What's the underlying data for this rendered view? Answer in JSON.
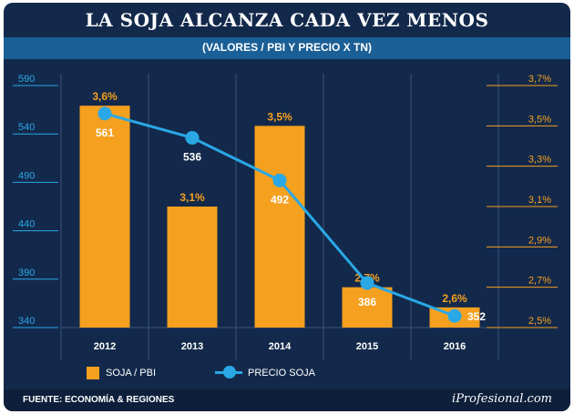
{
  "title": "LA SOJA ALCANZA CADA VEZ MENOS",
  "subtitle": "(VALORES / PBI Y PRECIO X TN)",
  "source": "FUENTE: ECONOMÍA & REGIONES",
  "brand": "iProfesional.com",
  "colors": {
    "background": "#13294b",
    "subtitle_bar": "#1a5f96",
    "bar": "#f5a01e",
    "line": "#2aa8e6",
    "left_axis": "#2aa8e6",
    "right_axis": "#f5a01e",
    "footer": "#0d1f3a"
  },
  "chart_data": {
    "type": "bar",
    "title": "LA SOJA ALCANZA CADA VEZ MENOS",
    "subtitle": "(VALORES / PBI Y PRECIO X TN)",
    "categories": [
      "2012",
      "2013",
      "2014",
      "2015",
      "2016"
    ],
    "series": [
      {
        "name": "SOJA / PBI",
        "type": "bar",
        "axis": "right",
        "values": [
          3.6,
          3.1,
          3.5,
          2.7,
          2.6
        ],
        "labels": [
          "3,6%",
          "3,1%",
          "3,5%",
          "2,7%",
          "2,6%"
        ]
      },
      {
        "name": "PRECIO SOJA",
        "type": "line",
        "axis": "left",
        "values": [
          561,
          536,
          492,
          386,
          352
        ],
        "labels": [
          "561",
          "536",
          "492",
          "386",
          "352"
        ]
      }
    ],
    "left_axis": {
      "ylim": [
        340,
        590
      ],
      "ticks": [
        340,
        390,
        440,
        490,
        540,
        590
      ],
      "tick_labels": [
        "340",
        "390",
        "440",
        "490",
        "540",
        "590"
      ]
    },
    "right_axis": {
      "ylim": [
        2.5,
        3.7
      ],
      "ticks": [
        2.5,
        2.7,
        2.9,
        3.1,
        3.3,
        3.5,
        3.7
      ],
      "tick_labels": [
        "2,5%",
        "2,7%",
        "2,9%",
        "3,1%",
        "3,3%",
        "3,5%",
        "3,7%"
      ]
    },
    "legend": [
      "SOJA / PBI",
      "PRECIO SOJA"
    ],
    "legend_position": "bottom-left"
  }
}
